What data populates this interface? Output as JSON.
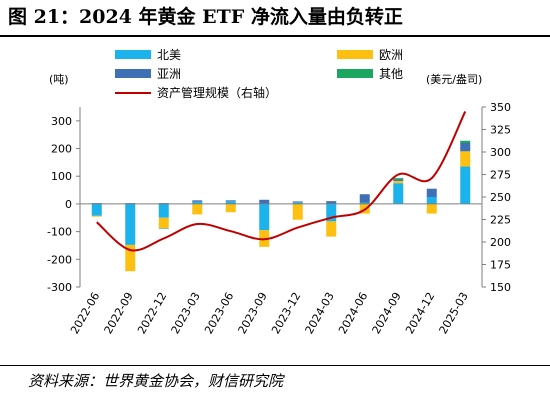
{
  "figure": {
    "title": "图 21：2024 年黄金 ETF 净流入量由负转正",
    "source": "资料来源：世界黄金协会，财信研究院"
  },
  "chart_data": {
    "type": "bar",
    "stacked": true,
    "categories": [
      "2022-06",
      "2022-09",
      "2022-12",
      "2023-03",
      "2023-06",
      "2023-09",
      "2023-12",
      "2024-03",
      "2024-06",
      "2024-09",
      "2024-12",
      "2025-03"
    ],
    "ylabel": "(吨)",
    "y2label": "(美元/盎司)",
    "ylim": [
      -300,
      350
    ],
    "y2lim": [
      150,
      350
    ],
    "yticks": [
      -300,
      -200,
      -100,
      0,
      100,
      200,
      300
    ],
    "y2ticks": [
      150,
      175,
      200,
      225,
      250,
      275,
      300,
      325,
      350
    ],
    "legend": [
      "北美",
      "欧洲",
      "亚洲",
      "其他",
      "资产管理规模（右轴）"
    ],
    "grid": false,
    "colors": {
      "north_america": "#1cb3ec",
      "europe": "#fdbf12",
      "asia": "#3f6fb5",
      "other": "#1aa560",
      "aum": "#c00000"
    },
    "series": [
      {
        "name": "北美",
        "values": [
          -43,
          -148,
          -50,
          8,
          10,
          -95,
          6,
          -63,
          5,
          75,
          25,
          135
        ]
      },
      {
        "name": "欧洲",
        "values": [
          -3,
          -95,
          -37,
          -38,
          -30,
          -60,
          -57,
          -55,
          -35,
          8,
          -35,
          55
        ]
      },
      {
        "name": "亚洲",
        "values": [
          3,
          3,
          3,
          5,
          3,
          15,
          3,
          10,
          30,
          5,
          30,
          30
        ]
      },
      {
        "name": "其他",
        "values": [
          0,
          0,
          -2,
          0,
          0,
          0,
          0,
          0,
          0,
          5,
          0,
          8
        ]
      },
      {
        "name": "资产管理规模（右轴）",
        "axis": "right",
        "type": "line",
        "values": [
          222,
          191,
          204,
          220,
          212,
          203,
          216,
          227,
          236,
          275,
          271,
          345
        ]
      }
    ]
  }
}
